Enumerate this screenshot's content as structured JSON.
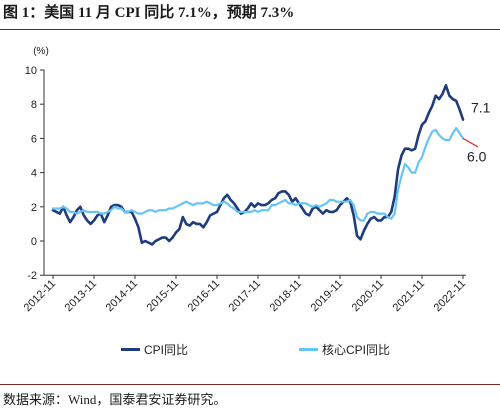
{
  "source": "数据来源：Wind，国泰君安证券研究。",
  "chart_data": {
    "type": "line",
    "title": "图 1：美国 11 月 CPI 同比 7.1%，预期 7.3%",
    "ylabel": "(%)",
    "ylim": [
      -2,
      10
    ],
    "yticks": [
      10,
      8,
      6,
      4,
      2,
      0,
      -2
    ],
    "xticks": [
      "2012-11",
      "2013-11",
      "2014-11",
      "2015-11",
      "2016-11",
      "2017-11",
      "2018-11",
      "2019-11",
      "2020-11",
      "2021-11",
      "2022-11"
    ],
    "grid": false,
    "legend": "bottom",
    "x": [
      "2012-11",
      "2012-12",
      "2013-01",
      "2013-02",
      "2013-03",
      "2013-04",
      "2013-05",
      "2013-06",
      "2013-07",
      "2013-08",
      "2013-09",
      "2013-10",
      "2013-11",
      "2013-12",
      "2014-01",
      "2014-02",
      "2014-03",
      "2014-04",
      "2014-05",
      "2014-06",
      "2014-07",
      "2014-08",
      "2014-09",
      "2014-10",
      "2014-11",
      "2014-12",
      "2015-01",
      "2015-02",
      "2015-03",
      "2015-04",
      "2015-05",
      "2015-06",
      "2015-07",
      "2015-08",
      "2015-09",
      "2015-10",
      "2015-11",
      "2015-12",
      "2016-01",
      "2016-02",
      "2016-03",
      "2016-04",
      "2016-05",
      "2016-06",
      "2016-07",
      "2016-08",
      "2016-09",
      "2016-10",
      "2016-11",
      "2016-12",
      "2017-01",
      "2017-02",
      "2017-03",
      "2017-04",
      "2017-05",
      "2017-06",
      "2017-07",
      "2017-08",
      "2017-09",
      "2017-10",
      "2017-11",
      "2017-12",
      "2018-01",
      "2018-02",
      "2018-03",
      "2018-04",
      "2018-05",
      "2018-06",
      "2018-07",
      "2018-08",
      "2018-09",
      "2018-10",
      "2018-11",
      "2018-12",
      "2019-01",
      "2019-02",
      "2019-03",
      "2019-04",
      "2019-05",
      "2019-06",
      "2019-07",
      "2019-08",
      "2019-09",
      "2019-10",
      "2019-11",
      "2019-12",
      "2020-01",
      "2020-02",
      "2020-03",
      "2020-04",
      "2020-05",
      "2020-06",
      "2020-07",
      "2020-08",
      "2020-09",
      "2020-10",
      "2020-11",
      "2020-12",
      "2021-01",
      "2021-02",
      "2021-03",
      "2021-04",
      "2021-05",
      "2021-06",
      "2021-07",
      "2021-08",
      "2021-09",
      "2021-10",
      "2021-11",
      "2021-12",
      "2022-01",
      "2022-02",
      "2022-03",
      "2022-04",
      "2022-05",
      "2022-06",
      "2022-07",
      "2022-08",
      "2022-09",
      "2022-10",
      "2022-11"
    ],
    "series": [
      {
        "name": "CPI同比",
        "color": "#1f3c7c",
        "values": [
          1.8,
          1.7,
          1.6,
          2.0,
          1.5,
          1.1,
          1.4,
          1.8,
          2.0,
          1.5,
          1.2,
          1.0,
          1.2,
          1.5,
          1.6,
          1.1,
          1.5,
          2.0,
          2.1,
          2.1,
          2.0,
          1.7,
          1.7,
          1.7,
          1.3,
          0.8,
          -0.1,
          0.0,
          -0.1,
          -0.2,
          0.0,
          0.1,
          0.2,
          0.2,
          0.0,
          0.2,
          0.5,
          0.7,
          1.4,
          1.0,
          0.9,
          1.1,
          1.0,
          1.0,
          0.8,
          1.1,
          1.5,
          1.6,
          1.7,
          2.1,
          2.5,
          2.7,
          2.4,
          2.2,
          1.9,
          1.6,
          1.7,
          1.9,
          2.2,
          2.0,
          2.2,
          2.1,
          2.1,
          2.2,
          2.4,
          2.5,
          2.8,
          2.9,
          2.9,
          2.7,
          2.3,
          2.5,
          2.2,
          1.9,
          1.6,
          1.5,
          1.9,
          2.0,
          1.8,
          1.6,
          1.8,
          1.7,
          1.7,
          1.8,
          2.1,
          2.3,
          2.5,
          2.3,
          1.5,
          0.3,
          0.1,
          0.6,
          1.0,
          1.3,
          1.4,
          1.2,
          1.2,
          1.4,
          1.4,
          1.7,
          2.6,
          4.2,
          5.0,
          5.4,
          5.4,
          5.3,
          5.4,
          6.2,
          6.8,
          7.0,
          7.5,
          7.9,
          8.5,
          8.3,
          8.6,
          9.1,
          8.5,
          8.3,
          8.2,
          7.7,
          7.1
        ]
      },
      {
        "name": "核心CPI同比",
        "color": "#66c6f3",
        "values": [
          1.9,
          1.9,
          1.9,
          2.0,
          1.9,
          1.7,
          1.7,
          1.6,
          1.7,
          1.8,
          1.7,
          1.7,
          1.7,
          1.7,
          1.6,
          1.6,
          1.7,
          1.8,
          2.0,
          1.9,
          1.9,
          1.7,
          1.7,
          1.8,
          1.7,
          1.6,
          1.6,
          1.7,
          1.8,
          1.8,
          1.7,
          1.8,
          1.8,
          1.8,
          1.9,
          1.9,
          2.0,
          2.1,
          2.2,
          2.3,
          2.2,
          2.1,
          2.2,
          2.2,
          2.2,
          2.3,
          2.2,
          2.1,
          2.1,
          2.2,
          2.3,
          2.2,
          2.0,
          1.9,
          1.7,
          1.7,
          1.7,
          1.7,
          1.7,
          1.8,
          1.7,
          1.8,
          1.8,
          1.8,
          2.1,
          2.1,
          2.2,
          2.3,
          2.4,
          2.2,
          2.2,
          2.1,
          2.2,
          2.2,
          2.2,
          2.1,
          2.0,
          2.1,
          2.0,
          2.1,
          2.2,
          2.4,
          2.4,
          2.3,
          2.3,
          2.3,
          2.3,
          2.4,
          2.1,
          1.4,
          1.2,
          1.2,
          1.6,
          1.7,
          1.7,
          1.6,
          1.6,
          1.6,
          1.4,
          1.3,
          1.6,
          3.0,
          3.8,
          4.5,
          4.3,
          4.0,
          4.0,
          4.6,
          4.9,
          5.5,
          6.0,
          6.4,
          6.5,
          6.2,
          6.0,
          5.9,
          5.9,
          6.3,
          6.6,
          6.3,
          6.0
        ]
      }
    ],
    "annotations": [
      {
        "text": "7.1",
        "series_index": 0,
        "x": "2022-11"
      },
      {
        "text": "6.0",
        "series_index": 1,
        "x": "2022-11",
        "leader_color": "#e0322b"
      }
    ]
  }
}
